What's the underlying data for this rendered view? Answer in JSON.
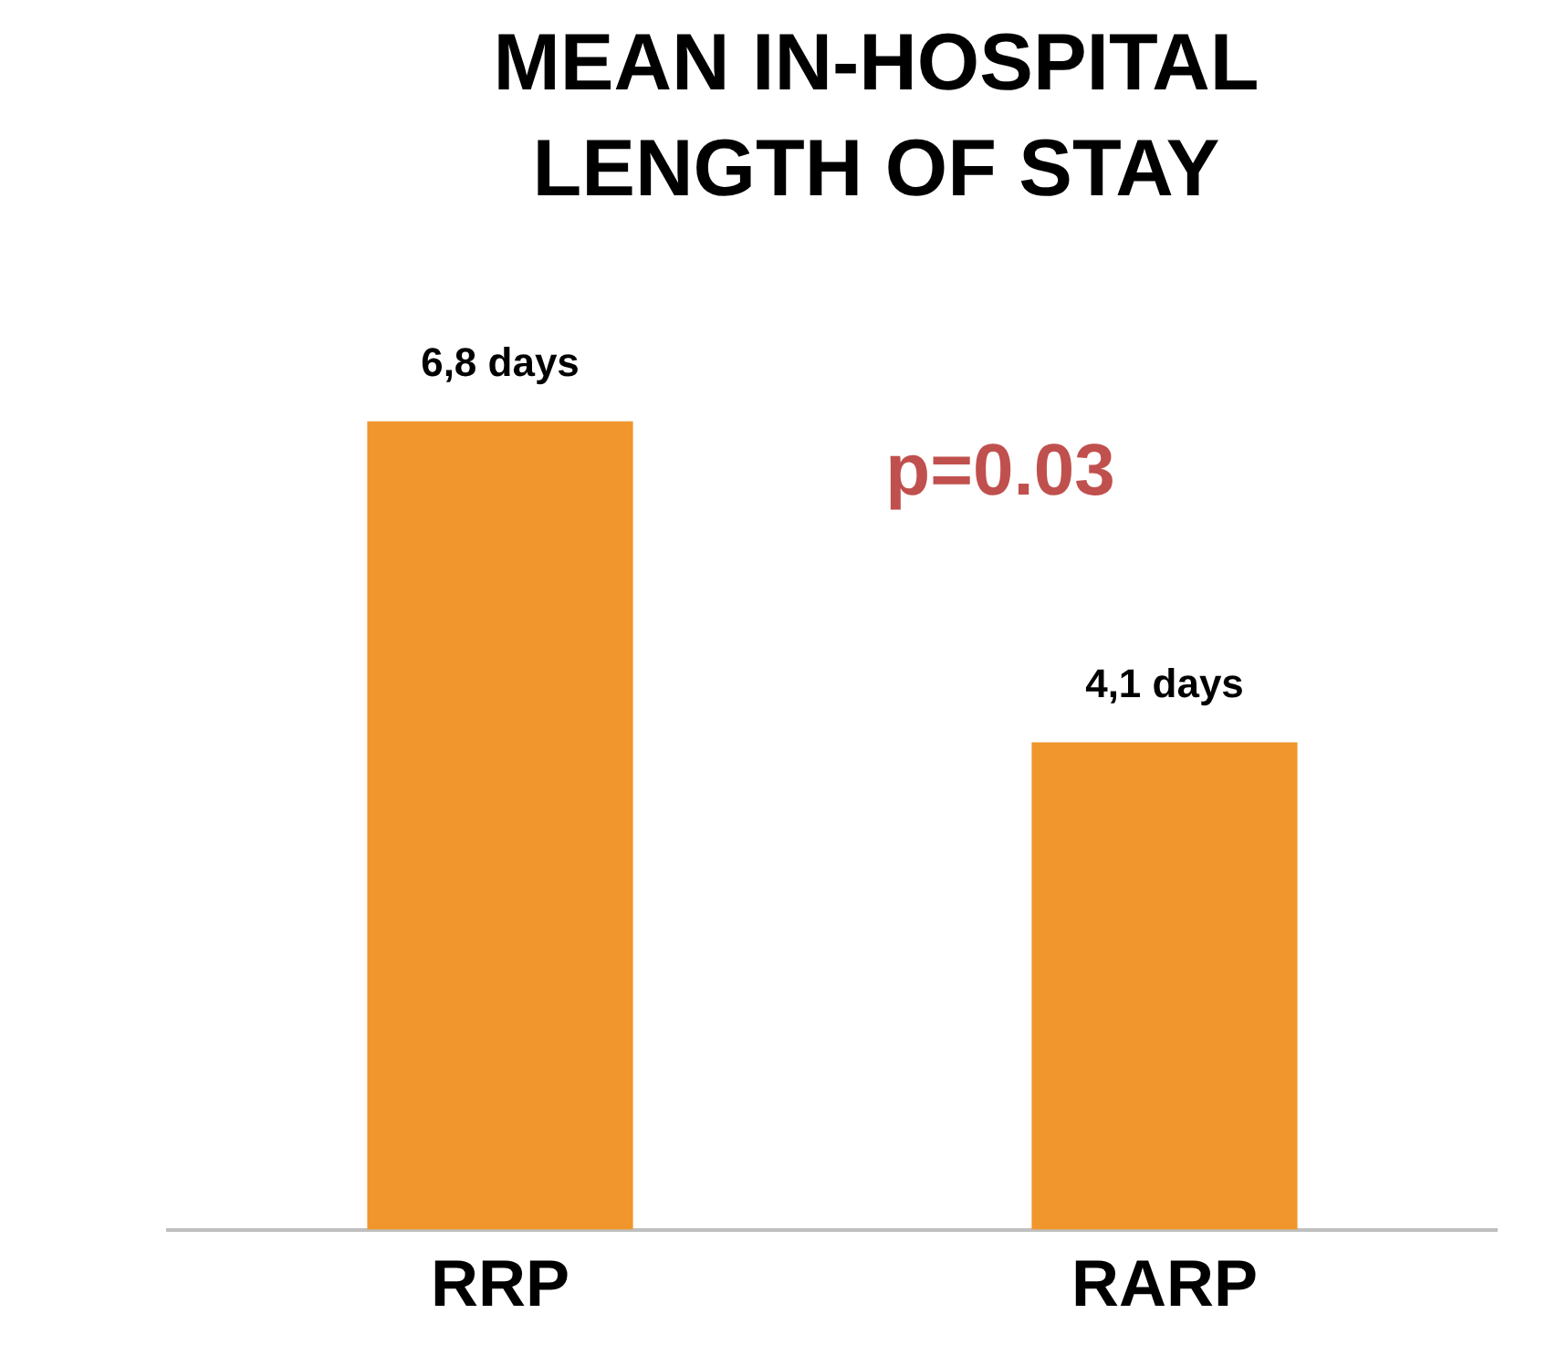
{
  "chart_data": {
    "type": "bar",
    "title": "MEAN IN-HOSPITAL LENGTH OF STAY",
    "categories": [
      "RRP",
      "RARP"
    ],
    "values": [
      6.8,
      4.1
    ],
    "value_labels": [
      "6,8 days",
      "4,1 days"
    ],
    "color": "#f0962c",
    "annotations": [
      "p=0.03"
    ],
    "grid": false,
    "legend": false
  }
}
